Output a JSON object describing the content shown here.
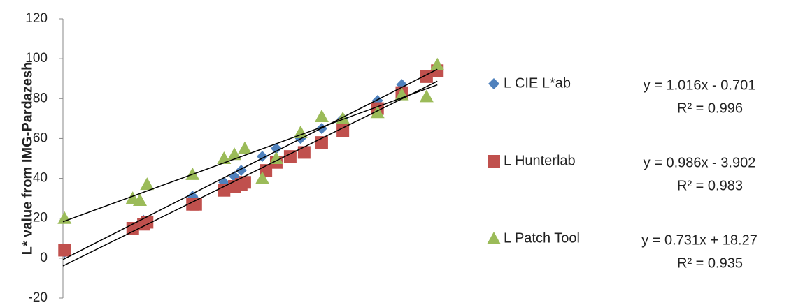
{
  "chart_data": {
    "type": "scatter",
    "ylabel": "L* value from IMG-Pardazesh",
    "xlim": [
      0,
      100
    ],
    "ylim": [
      -20,
      120
    ],
    "yticks": [
      -20,
      0,
      20,
      40,
      60,
      80,
      100,
      120
    ],
    "grid": false,
    "legend": "right",
    "series": [
      {
        "name": "L CIE L*ab",
        "color": "#4f81bd",
        "marker": "diamond",
        "x": [
          0.4,
          20.2,
          21.1,
          32.5,
          33.3,
          40.4,
          43,
          44.7,
          50,
          53.5,
          59.6,
          64.9,
          70.2,
          78.9,
          85,
          91.2,
          93.9
        ],
        "values": [
          3,
          19,
          17,
          31,
          29,
          38,
          41,
          44,
          51,
          55,
          60,
          65,
          70,
          79,
          87,
          91,
          94
        ],
        "trendline": {
          "slope": 1.016,
          "intercept": -0.701,
          "equation": "y = 1.016x - 0.701",
          "r2": "R² = 0.996"
        }
      },
      {
        "name": "L Hunterlab",
        "color": "#c0504d",
        "marker": "square",
        "x": [
          0.4,
          17.5,
          20.2,
          21.1,
          32.5,
          33.3,
          40.4,
          43,
          44.7,
          45.6,
          50.9,
          53.5,
          57,
          60.5,
          64.9,
          70.2,
          78.9,
          85,
          91.2,
          93.9
        ],
        "values": [
          4,
          15,
          17,
          18,
          27,
          27,
          34,
          36,
          37,
          38,
          44,
          48,
          51,
          53,
          58,
          64,
          75,
          83,
          91,
          94
        ],
        "trendline": {
          "slope": 0.986,
          "intercept": -3.902,
          "equation": "y = 0.986x - 3.902",
          "r2": "R² = 0.983"
        }
      },
      {
        "name": "L Patch Tool",
        "color": "#9bbb59",
        "marker": "triangle",
        "x": [
          0.4,
          17.5,
          19.3,
          21.1,
          32.5,
          40.4,
          43,
          45.6,
          50,
          53.5,
          59.6,
          64.9,
          70.2,
          78.9,
          85,
          91.2,
          93.9
        ],
        "values": [
          20,
          30,
          29,
          37,
          42,
          50,
          52,
          55,
          40,
          50,
          63,
          71,
          70,
          73,
          82,
          81,
          97
        ],
        "trendline": {
          "slope": 0.731,
          "intercept": 18.27,
          "equation": "y = 0.731x + 18.27",
          "r2": "R² = 0.935"
        }
      }
    ]
  }
}
